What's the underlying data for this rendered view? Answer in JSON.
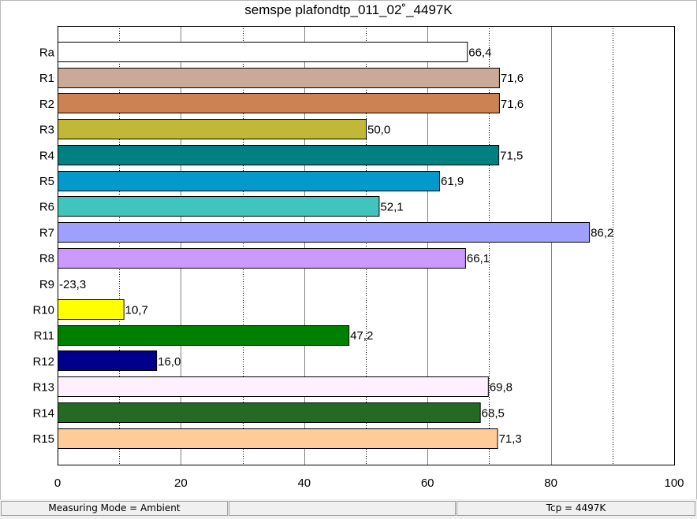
{
  "chart_data": {
    "type": "bar",
    "orientation": "horizontal",
    "title": "semspe plafondtp_011_02˚_4497K",
    "categories": [
      "Ra",
      "R1",
      "R2",
      "R3",
      "R4",
      "R5",
      "R6",
      "R7",
      "R8",
      "R9",
      "R10",
      "R11",
      "R12",
      "R13",
      "R14",
      "R15"
    ],
    "values": [
      66.4,
      71.6,
      71.6,
      50.0,
      71.5,
      61.9,
      52.1,
      86.2,
      66.1,
      -23.3,
      10.7,
      47.2,
      16.0,
      69.8,
      68.5,
      71.3
    ],
    "value_labels": [
      "66,4",
      "71,6",
      "71,6",
      "50,0",
      "71,5",
      "61,9",
      "52,1",
      "86,2",
      "66,1",
      "-23,3",
      "10,7",
      "47,2",
      "16,0",
      "69,8",
      "68,5",
      "71,3"
    ],
    "colors": [
      "#ffffff",
      "#cba99a",
      "#cc8252",
      "#c0b836",
      "#008080",
      "#0399cb",
      "#3fc5be",
      "#9f9ffe",
      "#cc99fe",
      "#ff0000",
      "#ffff00",
      "#008000",
      "#00008b",
      "#fff0ff",
      "#246924",
      "#ffcc99"
    ],
    "xlim": [
      0,
      100
    ],
    "x_ticks": [
      "0",
      "20",
      "40",
      "60",
      "80",
      "100"
    ],
    "solid_gridlines": [
      20,
      40,
      60,
      80
    ],
    "dotted_gridlines": [
      10,
      30,
      50,
      70,
      90
    ]
  },
  "status_bar": {
    "measuring_mode": "Measuring Mode = Ambient",
    "pane_2": "",
    "pane_3": "",
    "tcp": "Tcp = 4497K"
  }
}
